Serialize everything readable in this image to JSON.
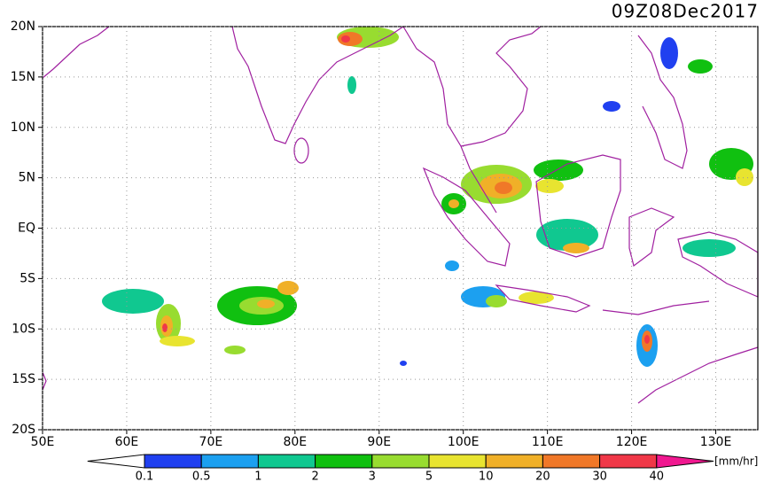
{
  "map": {
    "title": "09Z08Dec2017",
    "lonlim": [
      50,
      135
    ],
    "latlim": [
      -20,
      20
    ],
    "lonticks": [
      {
        "value": 50,
        "label": "50E"
      },
      {
        "value": 60,
        "label": "60E"
      },
      {
        "value": 70,
        "label": "70E"
      },
      {
        "value": 80,
        "label": "80E"
      },
      {
        "value": 90,
        "label": "90E"
      },
      {
        "value": 100,
        "label": "100E"
      },
      {
        "value": 110,
        "label": "110E"
      },
      {
        "value": 120,
        "label": "120E"
      },
      {
        "value": 130,
        "label": "130E"
      }
    ],
    "latticks": [
      {
        "value": 20,
        "label": "20N"
      },
      {
        "value": 15,
        "label": "15N"
      },
      {
        "value": 10,
        "label": "10N"
      },
      {
        "value": 5,
        "label": "5N"
      },
      {
        "value": 0,
        "label": "EQ"
      },
      {
        "value": -5,
        "label": "5S"
      },
      {
        "value": -10,
        "label": "10S"
      },
      {
        "value": -15,
        "label": "15S"
      },
      {
        "value": -20,
        "label": "20S"
      }
    ],
    "colorbar": {
      "levels": [
        0.1,
        0.5,
        1,
        2,
        3,
        5,
        10,
        20,
        30,
        40
      ],
      "colors": [
        "#ffffff",
        "#2040f0",
        "#1ca0f0",
        "#10c890",
        "#10c010",
        "#98dc30",
        "#e8e430",
        "#f0b028",
        "#f07828",
        "#f03848",
        "#f01890"
      ],
      "unit": "[mm/hr]"
    }
  }
}
